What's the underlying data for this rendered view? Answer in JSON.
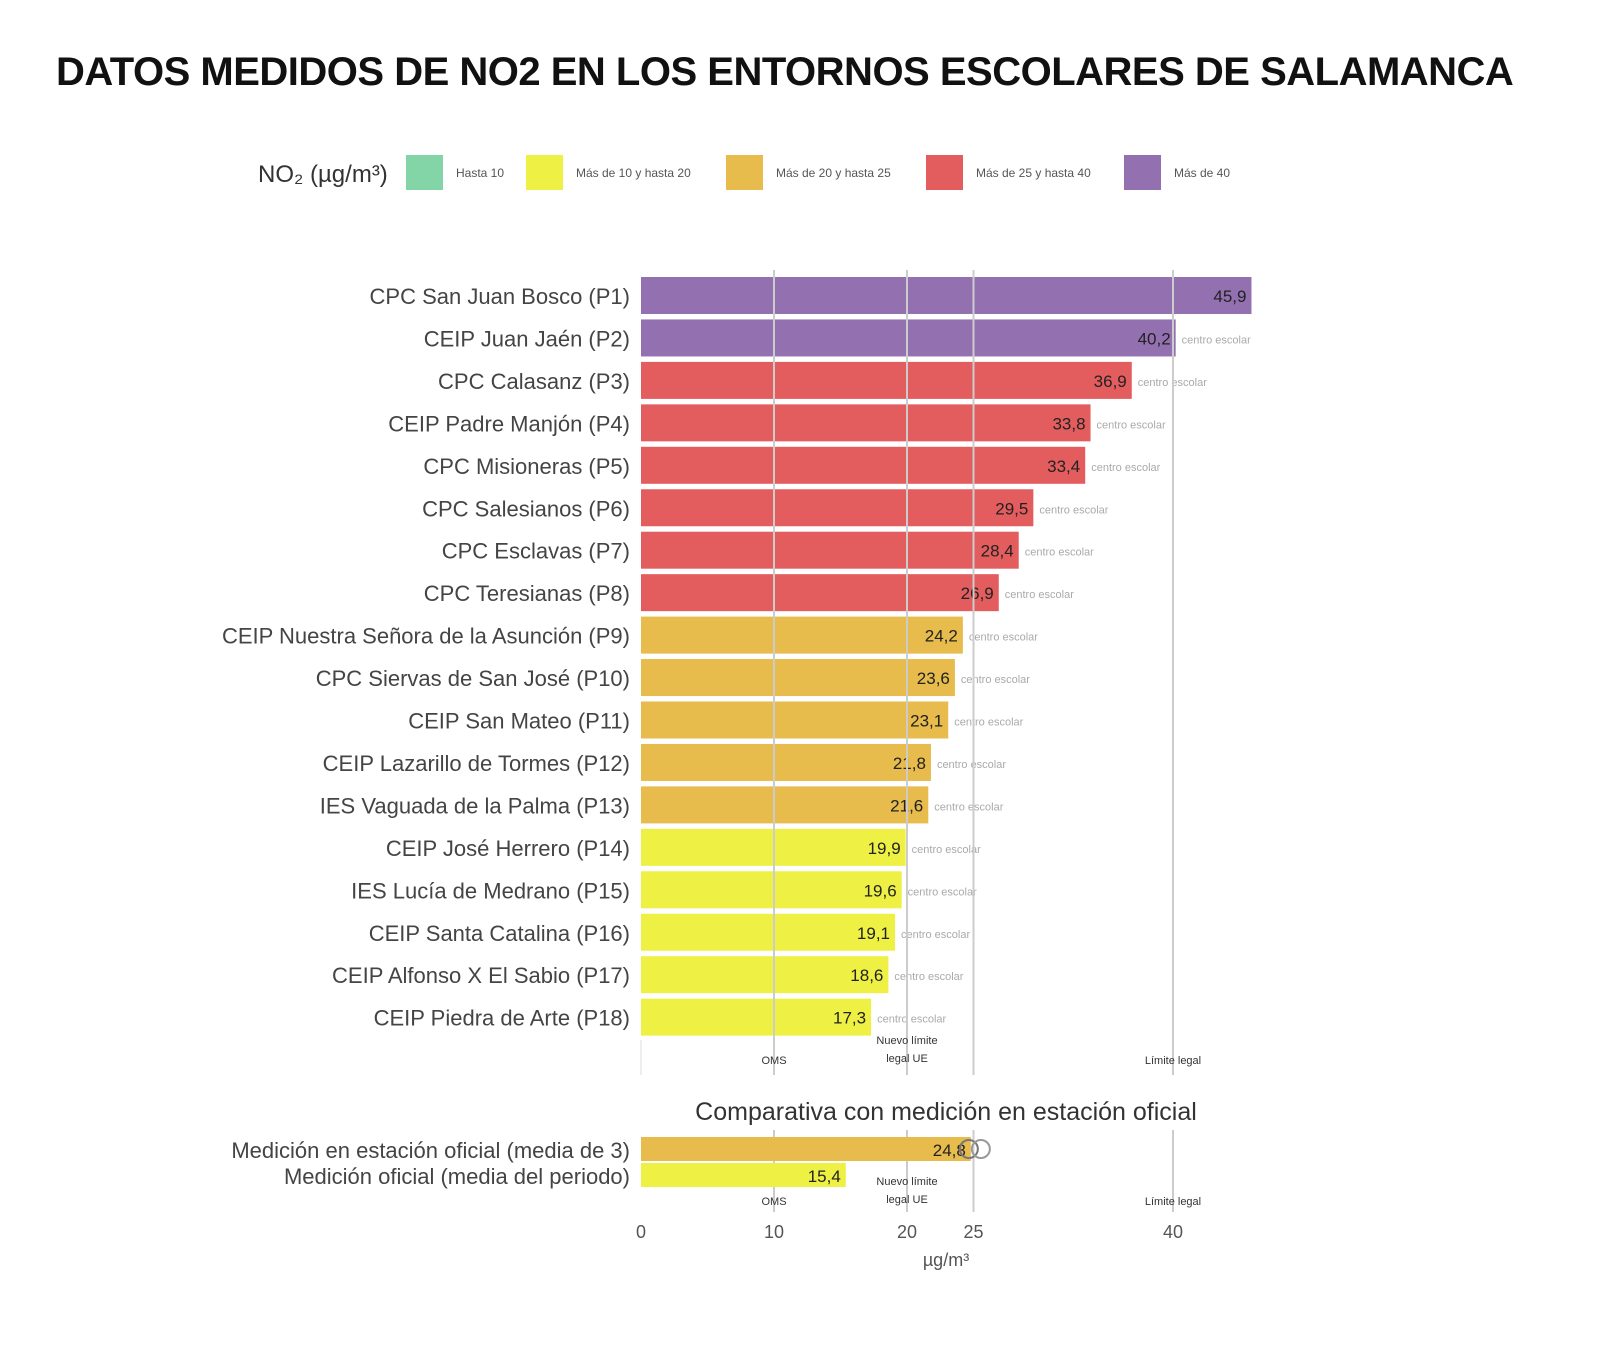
{
  "chart_data": {
    "type": "bar",
    "orientation": "horizontal",
    "title": "DATOS MEDIDOS DE NO2 EN LOS ENTORNOS ESCOLARES DE SALAMANCA",
    "legend": {
      "title": "NO₂ (µg/m³)",
      "placement": "top",
      "entries": [
        {
          "label": "Hasta 10",
          "color": "#83d5a8"
        },
        {
          "label": "Más de 10 y hasta 20",
          "color": "#eef044"
        },
        {
          "label": "Más de 20 y hasta 25",
          "color": "#e7bb4c"
        },
        {
          "label": "Más de 25 y hasta 40",
          "color": "#e35d5e"
        },
        {
          "label": "Más de 40",
          "color": "#9370b0"
        }
      ]
    },
    "categories": [
      "CPC San Juan Bosco (P1)",
      "CEIP Juan Jaén (P2)",
      "CPC Calasanz (P3)",
      "CEIP Padre Manjón (P4)",
      "CPC Misioneras (P5)",
      "CPC Salesianos (P6)",
      "CPC Esclavas (P7)",
      "CPC Teresianas (P8)",
      "CEIP Nuestra Señora de la Asunción (P9)",
      "CPC Siervas de San José (P10)",
      "CEIP San Mateo (P11)",
      "CEIP Lazarillo de Tormes (P12)",
      "IES Vaguada de la Palma (P13)",
      "CEIP José Herrero (P14)",
      "IES Lucía de Medrano (P15)",
      "CEIP Santa Catalina (P16)",
      "CEIP Alfonso X El Sabio (P17)",
      "CEIP Piedra de Arte (P18)"
    ],
    "values": [
      45.9,
      40.2,
      36.9,
      33.8,
      33.4,
      29.5,
      28.4,
      26.9,
      24.2,
      23.6,
      23.1,
      21.8,
      21.6,
      19.9,
      19.6,
      19.1,
      18.6,
      17.3
    ],
    "value_labels": [
      "45,9",
      "40,2",
      "36,9",
      "33,8",
      "33,4",
      "29,5",
      "28,4",
      "26,9",
      "24,2",
      "23,6",
      "23,1",
      "21,8",
      "21,6",
      "19,9",
      "19,6",
      "19,1",
      "18,6",
      "17,3"
    ],
    "bar_note": "centro escolar",
    "reference_lines": [
      {
        "value": 10,
        "label": "OMS"
      },
      {
        "value": 20,
        "label": "Nuevo límite legal UE"
      },
      {
        "value": 25,
        "label": ""
      },
      {
        "value": 40,
        "label": "Límite legal"
      }
    ],
    "comparison": {
      "title": "Comparativa con medición en estación oficial",
      "categories": [
        "Medición en estación oficial (media de 3)",
        "Medición oficial (media del periodo)"
      ],
      "values": [
        24.8,
        15.4
      ],
      "value_labels": [
        "24,8",
        "15,4"
      ]
    },
    "xticks": [
      0,
      10,
      20,
      25,
      40
    ],
    "xlabel": "µg/m³",
    "xlim": [
      0,
      46
    ],
    "grid": true
  }
}
